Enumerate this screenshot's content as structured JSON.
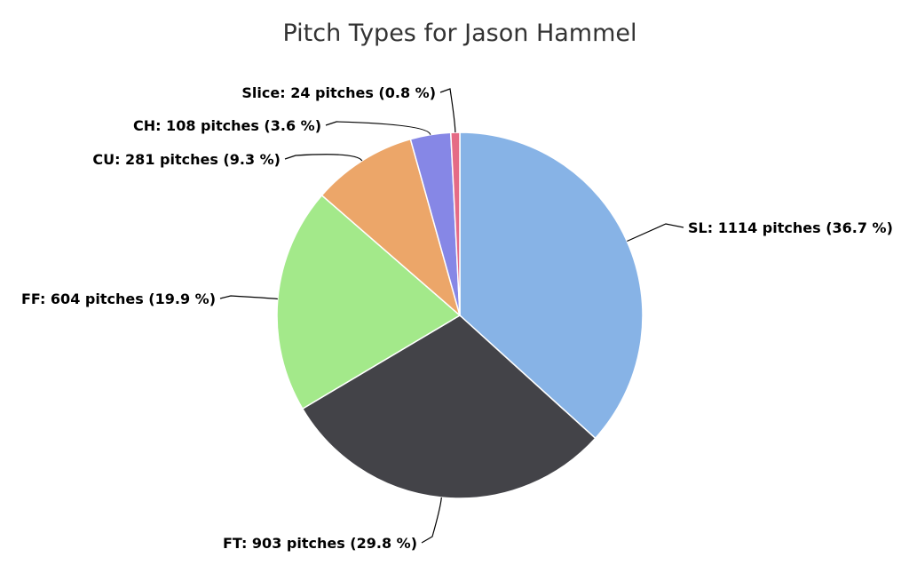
{
  "chart_data": {
    "type": "pie",
    "title": "Pitch Types for Jason Hammel",
    "label_format": "{name}: {count} pitches ({pct} %)",
    "slices": [
      {
        "name": "SL",
        "value": 1114,
        "percent": 36.7,
        "label": "SL: 1114 pitches (36.7 %)",
        "color": "#87b3e6"
      },
      {
        "name": "FT",
        "value": 903,
        "percent": 29.8,
        "label": "FT: 903 pitches (29.8 %)",
        "color": "#434348"
      },
      {
        "name": "FF",
        "value": 604,
        "percent": 19.9,
        "label": "FF: 604 pitches (19.9 %)",
        "color": "#a3e98a"
      },
      {
        "name": "CU",
        "value": 281,
        "percent": 9.3,
        "label": "CU: 281 pitches (9.3 %)",
        "color": "#eca669"
      },
      {
        "name": "CH",
        "value": 108,
        "percent": 3.6,
        "label": "CH: 108 pitches (3.6 %)",
        "color": "#8687e6"
      },
      {
        "name": "Slice",
        "value": 24,
        "percent": 0.8,
        "label": "Slice: 24 pitches (0.8 %)",
        "color": "#e56b86"
      }
    ]
  }
}
